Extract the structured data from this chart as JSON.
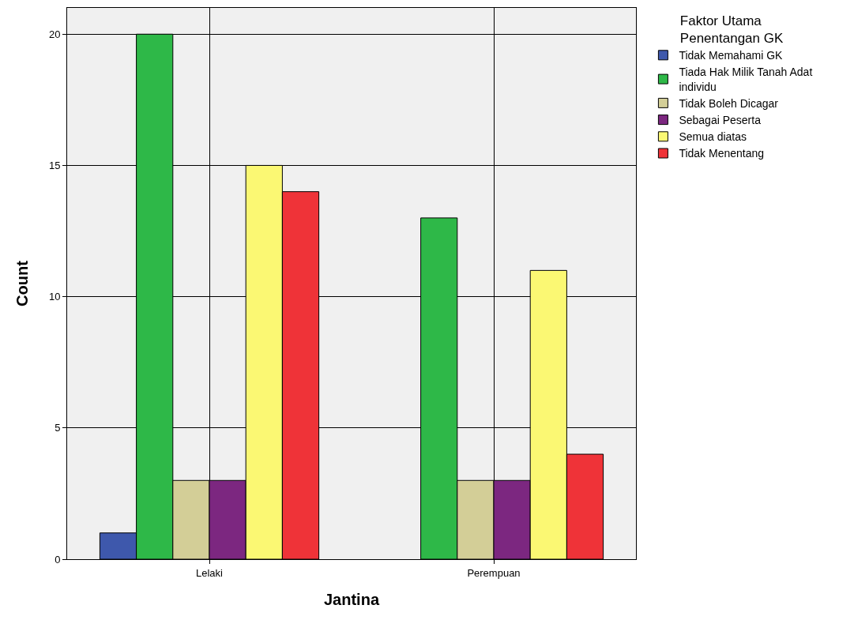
{
  "chart_data": {
    "type": "bar",
    "xlabel": "Jantina",
    "ylabel": "Count",
    "legend_title": "Faktor Utama\nPenentangan GK",
    "categories": [
      "Lelaki",
      "Perempuan"
    ],
    "series": [
      {
        "name": "Tidak Memahami GK",
        "color": "#3e58ac",
        "values": [
          1,
          null
        ]
      },
      {
        "name": "Tiada Hak Milik Tanah Adat\nindividu",
        "color": "#2eb848",
        "values": [
          20,
          13
        ]
      },
      {
        "name": "Tidak Boleh Dicagar",
        "color": "#d3ce97",
        "values": [
          3,
          3
        ]
      },
      {
        "name": "Sebagai Peserta",
        "color": "#7c2780",
        "values": [
          3,
          3
        ]
      },
      {
        "name": "Semua diatas",
        "color": "#fbf873",
        "values": [
          15,
          11
        ]
      },
      {
        "name": "Tidak Menentang",
        "color": "#ef3338",
        "values": [
          14,
          4
        ]
      }
    ],
    "ylim": [
      0,
      21
    ],
    "yticks": [
      0,
      5,
      10,
      15,
      20
    ],
    "grid": true,
    "legend": "top right"
  }
}
